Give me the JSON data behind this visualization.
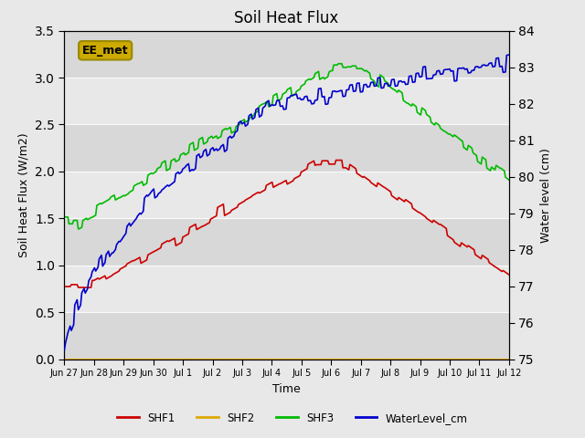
{
  "title": "Soil Heat Flux",
  "ylabel_left": "Soil Heat Flux (W/m2)",
  "ylabel_right": "Water level (cm)",
  "xlabel": "Time",
  "ylim_left": [
    0.0,
    3.5
  ],
  "ylim_right": [
    75.0,
    84.0
  ],
  "fig_facecolor": "#e8e8e8",
  "plot_facecolor": "#e0e0e0",
  "annotation_text": "EE_met",
  "annotation_bg": "#ccaa00",
  "annotation_edge": "#998800",
  "legend_entries": [
    "SHF1",
    "SHF2",
    "SHF3",
    "WaterLevel_cm"
  ],
  "shf1_color": "#cc0000",
  "shf2_color": "#ddaa00",
  "shf3_color": "#00bb00",
  "water_color": "#0000cc",
  "band_colors": [
    "#d8d8d8",
    "#e8e8e8"
  ],
  "x_tick_labels": [
    "Jun 27",
    "Jun 28",
    "Jun 29",
    "Jun 30",
    "Jul 1",
    "Jul 2",
    "Jul 3",
    "Jul 4",
    "Jul 5",
    "Jul 6",
    "Jul 7",
    "Jul 8",
    "Jul 9",
    "Jul 10",
    "Jul 11",
    "Jul 12"
  ],
  "yticks_left": [
    0.0,
    0.5,
    1.0,
    1.5,
    2.0,
    2.5,
    3.0,
    3.5
  ],
  "yticks_right": [
    75.0,
    76.0,
    77.0,
    78.0,
    79.0,
    80.0,
    81.0,
    82.0,
    83.0,
    84.0
  ]
}
